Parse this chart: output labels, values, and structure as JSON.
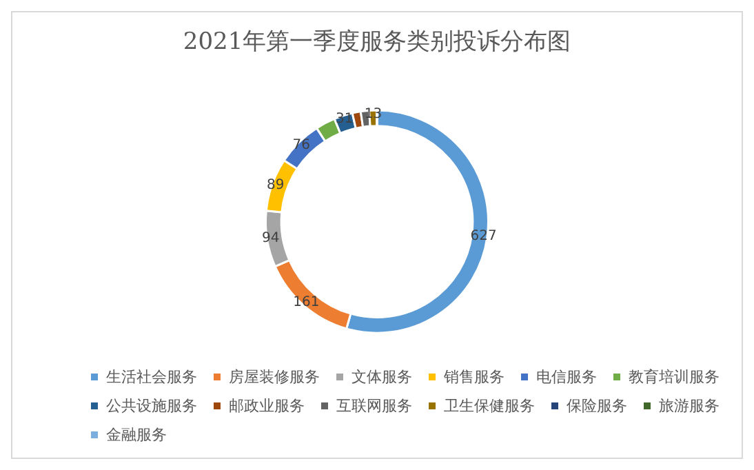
{
  "chart_data": {
    "type": "donut",
    "title": "2021年第一季度服务类别投诉分布图",
    "categories": [
      "生活社会服务",
      "房屋装修服务",
      "文体服务",
      "销售服务",
      "电信服务",
      "教育培训服务",
      "公共设施服务",
      "邮政业服务",
      "互联网服务",
      "卫生保健服务",
      "保险服务",
      "旅游服务",
      "金融服务"
    ],
    "values": [
      627,
      161,
      94,
      89,
      76,
      33,
      31,
      14,
      14,
      13,
      0,
      0,
      0
    ],
    "value_labels": [
      "627",
      "161",
      "94",
      "89",
      "76",
      null,
      "31",
      null,
      null,
      "13",
      null,
      null,
      null
    ],
    "colors": [
      "#5b9bd5",
      "#ed7d31",
      "#a5a5a5",
      "#ffc000",
      "#4472c4",
      "#70ad47",
      "#255e91",
      "#9e480e",
      "#636363",
      "#997300",
      "#264478",
      "#43682b",
      "#7cafdd"
    ],
    "legend": "bottom"
  }
}
